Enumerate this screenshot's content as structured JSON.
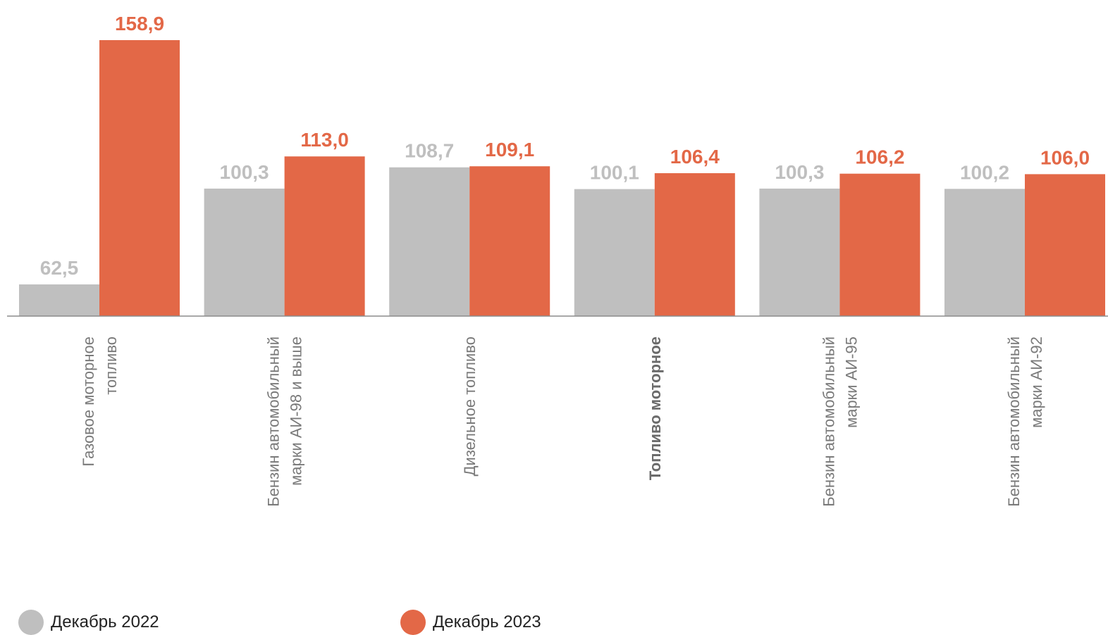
{
  "chart_data": {
    "type": "bar",
    "categories": [
      [
        "Газовое моторное",
        "топливо"
      ],
      [
        "Бензин автомобильный",
        "марки АИ-98 и выше"
      ],
      [
        "Дизельное топливо"
      ],
      [
        "Топливо моторное"
      ],
      [
        "Бензин автомобильный",
        "марки АИ-95"
      ],
      [
        "Бензин автомобильный",
        "марки АИ-92"
      ]
    ],
    "bold_categories": [
      3
    ],
    "series": [
      {
        "name": "Декабрь 2022",
        "color": "#bfbfbf",
        "label_color": "#bfbfbf",
        "values": [
          62.5,
          100.3,
          108.7,
          100.1,
          100.3,
          100.2
        ],
        "labels": [
          "62,5",
          "100,3",
          "108,7",
          "100,1",
          "100,3",
          "100,2"
        ]
      },
      {
        "name": "Декабрь 2023",
        "color": "#e36847",
        "label_color": "#e36847",
        "values": [
          158.9,
          113.0,
          109.1,
          106.4,
          106.2,
          106.0
        ],
        "labels": [
          "158,9",
          "113,0",
          "109,1",
          "106,4",
          "106,2",
          "106,0"
        ]
      }
    ],
    "title": "",
    "xlabel": "",
    "ylabel": "",
    "ylim": [
      50,
      160
    ],
    "grid": false,
    "legend_position": "bottom-left"
  }
}
